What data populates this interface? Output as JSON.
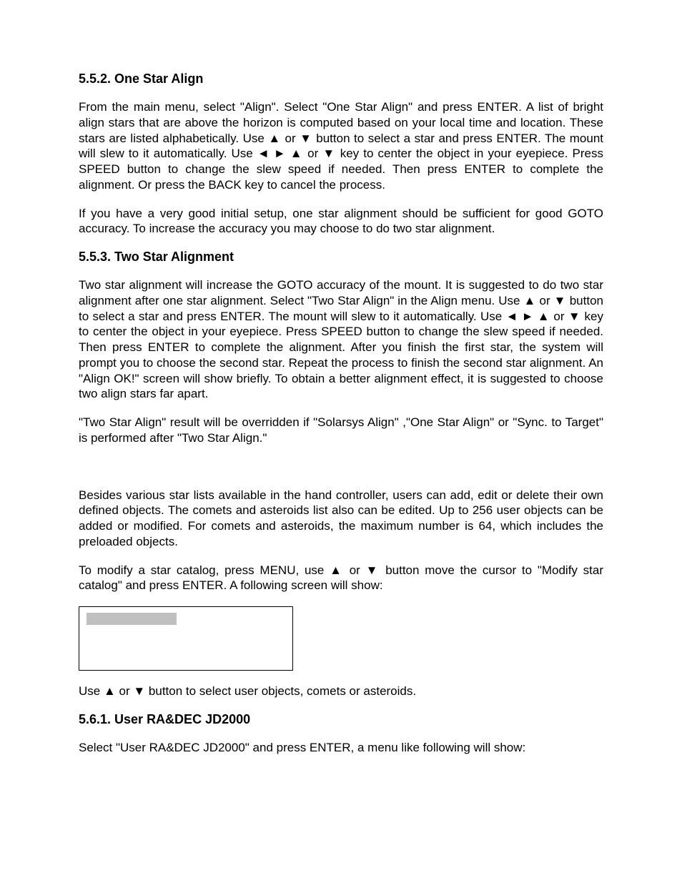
{
  "sections": {
    "s552": {
      "heading": "5.5.2. One Star Align",
      "p1_a": "From the main menu, select \"Align\". Select \"One Star Align\" and press ENTER. A list of bright align stars that are above the horizon is computed based on your local time and location.  These stars are listed alphabetically. Use ",
      "p1_b": " or ",
      "p1_c": " button to select a star and press ENTER.  The mount will slew to it automatically. Use ",
      "p1_d": " ",
      "p1_e": " ",
      "p1_f": " or ",
      "p1_g": " key to center the object in your eyepiece. Press SPEED button to change the slew speed if needed. Then press ENTER to complete the alignment. Or press the BACK key to cancel the process.",
      "p2": "If you have a very good initial setup, one star alignment should be sufficient for good GOTO accuracy. To increase the accuracy you may choose to do two star alignment."
    },
    "s553": {
      "heading": "5.5.3. Two Star Alignment",
      "p1_a": "Two star alignment will increase the GOTO accuracy of the mount. It is suggested to do two star alignment after one star alignment. Select \"Two Star Align\" in the Align menu. Use ",
      "p1_b": " or ",
      "p1_c": " button to select a star and press ENTER.  The mount will slew to it automatically. Use ",
      "p1_d": " ",
      "p1_e": " ",
      "p1_f": " or ",
      "p1_g": " key to center the object in your eyepiece. Press SPEED button to change the slew speed if needed. Then press ENTER to complete the alignment. After you finish the first star, the system will prompt you to choose the second star. Repeat the process to finish the second star alignment. An \"Align OK!\" screen will show briefly. To obtain a better alignment effect, it is suggested to choose two align stars far apart.",
      "p2": "\"Two Star Align\" result will be overridden if \"Solarsys Align\" ,\"One Star Align\" or \"Sync. to Target\" is performed after \"Two Star Align.\""
    },
    "s56intro": {
      "p1": "Besides various star lists available in the hand controller, users can add, edit or delete their own defined objects. The comets and asteroids list also can be edited. Up to 256 user objects can be added or modified. For comets and asteroids, the maximum number is 64, which includes the preloaded objects.",
      "p2_a": "To modify a star catalog, press MENU, use ",
      "p2_b": " or ",
      "p2_c": " button move the cursor to \"Modify star catalog\" and press ENTER. A following screen will show:"
    },
    "screenbox": {
      "highlight": "              "
    },
    "after_box": {
      "p_a": "Use ",
      "p_b": " or ",
      "p_c": " button to select user objects, comets or asteroids."
    },
    "s561": {
      "heading": "5.6.1. User RA&DEC JD2000",
      "p1": "Select \"User RA&DEC JD2000\" and press ENTER, a menu like following will show:"
    }
  },
  "glyphs": {
    "up": "▲",
    "down": "▼",
    "left": "◄",
    "right": "►"
  }
}
